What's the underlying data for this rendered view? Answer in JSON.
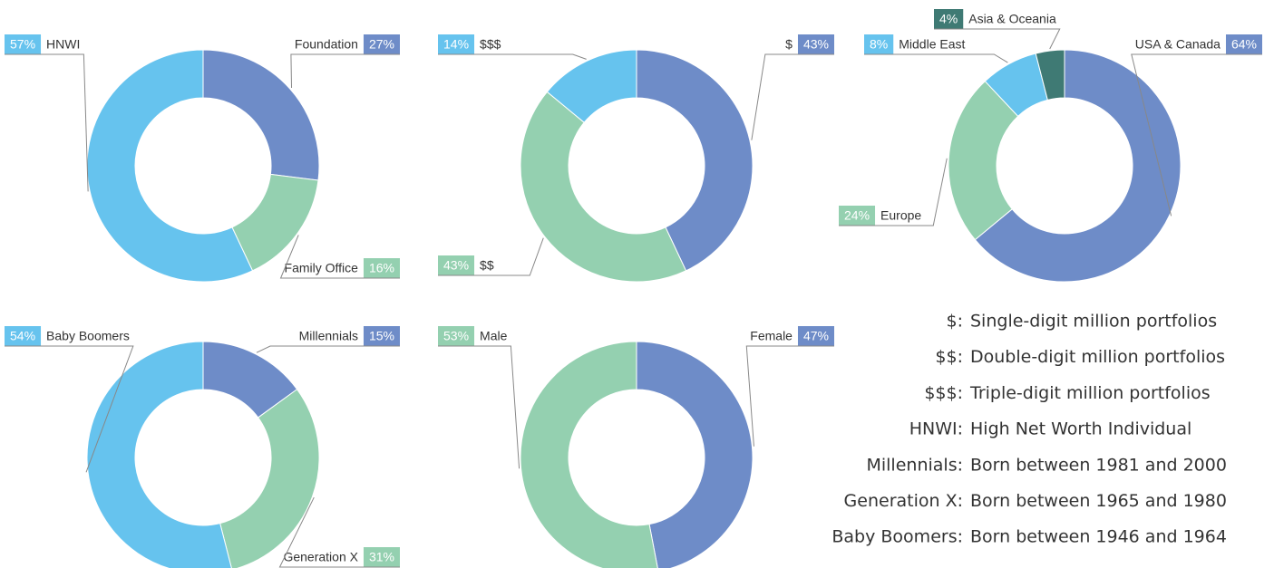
{
  "chart_data": [
    {
      "type": "donut",
      "categories": [
        "Foundation",
        "Family Office",
        "HNWI"
      ],
      "values": [
        27,
        16,
        57
      ],
      "value_labels": [
        "27%",
        "16%",
        "57%"
      ],
      "colors": [
        "#6e8cc8",
        "#94d0b0",
        "#66c3ee"
      ]
    },
    {
      "type": "donut",
      "categories": [
        "$",
        "$$",
        "$$$"
      ],
      "values": [
        43,
        43,
        14
      ],
      "value_labels": [
        "43%",
        "43%",
        "14%"
      ],
      "colors": [
        "#6e8cc8",
        "#94d0b0",
        "#66c3ee"
      ]
    },
    {
      "type": "donut",
      "categories": [
        "USA & Canada",
        "Europe",
        "Middle East",
        "Asia & Oceania"
      ],
      "values": [
        64,
        24,
        8,
        4
      ],
      "value_labels": [
        "64%",
        "24%",
        "8%",
        "4%"
      ],
      "colors": [
        "#6e8cc8",
        "#94d0b0",
        "#66c3ee",
        "#3f7a74"
      ]
    },
    {
      "type": "donut",
      "categories": [
        "Millennials",
        "Generation X",
        "Baby Boomers"
      ],
      "values": [
        15,
        31,
        54
      ],
      "value_labels": [
        "15%",
        "31%",
        "54%"
      ],
      "colors": [
        "#6e8cc8",
        "#94d0b0",
        "#66c3ee"
      ]
    },
    {
      "type": "donut",
      "categories": [
        "Female",
        "Male"
      ],
      "values": [
        47,
        53
      ],
      "value_labels": [
        "47%",
        "53%"
      ],
      "colors": [
        "#6e8cc8",
        "#94d0b0"
      ]
    }
  ],
  "glossary": [
    {
      "term": "$:",
      "definition": "Single-digit million portfolios"
    },
    {
      "term": "$$:",
      "definition": "Double-digit million portfolios"
    },
    {
      "term": "$$$:",
      "definition": "Triple-digit million portfolios"
    },
    {
      "term": "HNWI:",
      "definition": "High Net Worth Individual"
    },
    {
      "term": "Millennials:",
      "definition": "Born between 1981 and 2000"
    },
    {
      "term": "Generation X:",
      "definition": "Born between 1965 and 1980"
    },
    {
      "term": "Baby Boomers:",
      "definition": "Born between 1946 and 1964"
    }
  ]
}
